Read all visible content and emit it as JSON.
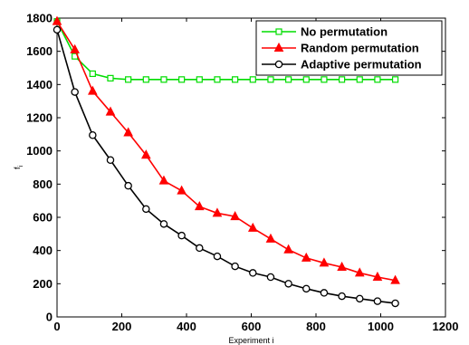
{
  "chart_data": {
    "type": "line",
    "title": "",
    "xlabel": "Experiment i",
    "ylabel": "f",
    "ylabel_subscript": "i",
    "xlim": [
      0,
      1200
    ],
    "ylim": [
      0,
      1800
    ],
    "xticks": [
      0,
      200,
      400,
      600,
      800,
      1000,
      1200
    ],
    "yticks": [
      0,
      200,
      400,
      600,
      800,
      1000,
      1200,
      1400,
      1600,
      1800
    ],
    "grid": false,
    "legend_position": "top-right",
    "series": [
      {
        "name": "No permutation",
        "color": "#00dd00",
        "marker": "square",
        "x": [
          0,
          55,
          110,
          165,
          220,
          275,
          330,
          385,
          440,
          495,
          550,
          605,
          660,
          715,
          770,
          825,
          880,
          935,
          990,
          1045
        ],
        "y": [
          1780,
          1570,
          1465,
          1438,
          1430,
          1430,
          1430,
          1430,
          1430,
          1430,
          1430,
          1430,
          1430,
          1430,
          1430,
          1430,
          1430,
          1430,
          1430,
          1430
        ]
      },
      {
        "name": "Random permutation",
        "color": "#ff0000",
        "marker": "triangle",
        "x": [
          0,
          55,
          110,
          165,
          220,
          275,
          330,
          385,
          440,
          495,
          550,
          605,
          660,
          715,
          770,
          825,
          880,
          935,
          990,
          1045
        ],
        "y": [
          1780,
          1610,
          1360,
          1235,
          1110,
          975,
          820,
          760,
          665,
          625,
          605,
          535,
          470,
          405,
          355,
          325,
          300,
          265,
          240,
          220
        ]
      },
      {
        "name": "Adaptive permutation",
        "color": "#000000",
        "marker": "circle",
        "x": [
          0,
          55,
          110,
          165,
          220,
          275,
          330,
          385,
          440,
          495,
          550,
          605,
          660,
          715,
          770,
          825,
          880,
          935,
          990,
          1045
        ],
        "y": [
          1730,
          1355,
          1095,
          945,
          790,
          650,
          560,
          490,
          415,
          365,
          305,
          265,
          240,
          200,
          170,
          145,
          125,
          110,
          95,
          82
        ]
      }
    ]
  }
}
